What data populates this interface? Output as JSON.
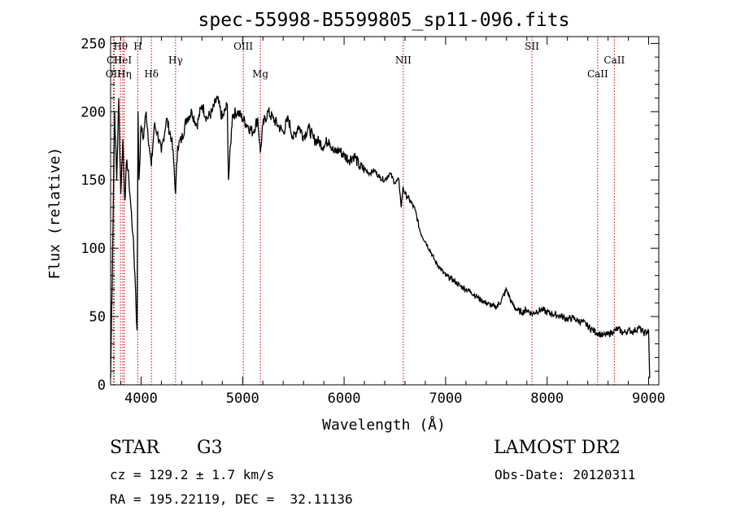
{
  "chart_data": {
    "type": "line",
    "title": "spec-55998-B5599805_sp11-096.fits",
    "xlabel": "Wavelength (Å)",
    "ylabel": "Flux (relative)",
    "xlim": [
      3700,
      9100
    ],
    "ylim": [
      0,
      255
    ],
    "xticks": [
      4000,
      5000,
      6000,
      7000,
      8000,
      9000
    ],
    "yticks": [
      0,
      50,
      100,
      150,
      200,
      250
    ],
    "grid": false,
    "series": [
      {
        "color": "#000000",
        "x": [
          3700,
          3720,
          3740,
          3760,
          3780,
          3800,
          3820,
          3840,
          3860,
          3880,
          3900,
          3920,
          3940,
          3960,
          3970,
          3980,
          4000,
          4020,
          4050,
          4080,
          4101,
          4130,
          4160,
          4200,
          4250,
          4300,
          4320,
          4340,
          4360,
          4400,
          4450,
          4500,
          4550,
          4600,
          4650,
          4700,
          4750,
          4800,
          4850,
          4861,
          4900,
          4950,
          5000,
          5050,
          5100,
          5150,
          5175,
          5200,
          5250,
          5300,
          5350,
          5400,
          5450,
          5500,
          5550,
          5600,
          5650,
          5700,
          5750,
          5800,
          5850,
          5900,
          5950,
          6000,
          6050,
          6100,
          6150,
          6200,
          6250,
          6300,
          6350,
          6400,
          6450,
          6500,
          6540,
          6563,
          6580,
          6600,
          6650,
          6700,
          6750,
          6800,
          6850,
          6900,
          6950,
          7000,
          7050,
          7100,
          7150,
          7200,
          7250,
          7300,
          7350,
          7400,
          7450,
          7500,
          7550,
          7600,
          7650,
          7700,
          7750,
          7800,
          7850,
          7900,
          7950,
          8000,
          8050,
          8100,
          8150,
          8200,
          8250,
          8300,
          8350,
          8400,
          8450,
          8500,
          8550,
          8600,
          8650,
          8700,
          8750,
          8800,
          8850,
          8900,
          8950,
          9000,
          9010
        ],
        "y": [
          5,
          100,
          200,
          150,
          210,
          140,
          180,
          135,
          165,
          150,
          130,
          110,
          80,
          40,
          200,
          150,
          190,
          180,
          200,
          175,
          160,
          190,
          185,
          170,
          195,
          180,
          165,
          140,
          175,
          180,
          195,
          200,
          190,
          205,
          195,
          200,
          210,
          195,
          205,
          150,
          198,
          200,
          195,
          190,
          185,
          195,
          170,
          190,
          200,
          195,
          190,
          185,
          195,
          180,
          190,
          182,
          188,
          180,
          178,
          175,
          180,
          170,
          172,
          168,
          165,
          168,
          160,
          158,
          155,
          157,
          152,
          150,
          155,
          148,
          150,
          130,
          145,
          140,
          135,
          128,
          112,
          105,
          98,
          90,
          85,
          80,
          78,
          75,
          72,
          70,
          68,
          65,
          62,
          60,
          58,
          57,
          62,
          70,
          60,
          55,
          53,
          55,
          52,
          54,
          55,
          53,
          52,
          51,
          50,
          48,
          49,
          47,
          46,
          43,
          40,
          38,
          36,
          37,
          39,
          41,
          38,
          40,
          39,
          42,
          38,
          39,
          5
        ]
      }
    ],
    "lines": [
      {
        "label": "CII",
        "wavelength": 3735,
        "row": 1
      },
      {
        "label": "OII",
        "wavelength": 3727,
        "row": 2
      },
      {
        "label": "Hθ",
        "wavelength": 3798,
        "row": 0
      },
      {
        "label": "HeI",
        "wavelength": 3820,
        "row": 1
      },
      {
        "label": "Hη",
        "wavelength": 3835,
        "row": 2
      },
      {
        "label": "H",
        "wavelength": 3968,
        "row": 0
      },
      {
        "label": "Hδ",
        "wavelength": 4102,
        "row": 2
      },
      {
        "label": "Hγ",
        "wavelength": 4340,
        "row": 1
      },
      {
        "label": "OIII",
        "wavelength": 5007,
        "row": 0
      },
      {
        "label": "Mg",
        "wavelength": 5175,
        "row": 2
      },
      {
        "label": "NII",
        "wavelength": 6583,
        "row": 1
      },
      {
        "label": "SII",
        "wavelength": 7850,
        "row": 0
      },
      {
        "label": "CaII",
        "wavelength": 8662,
        "row": 1
      },
      {
        "label": "CaII",
        "wavelength": 8498,
        "row": 2
      }
    ],
    "line_color": "#cc0000"
  },
  "info": {
    "class": "STAR",
    "subclass": "G3",
    "survey": "LAMOST DR2",
    "cz": "cz = 129.2 ± 1.7 km/s",
    "obs_date": "Obs-Date: 20120311",
    "coords": "RA = 195.22119, DEC =  32.11136"
  }
}
